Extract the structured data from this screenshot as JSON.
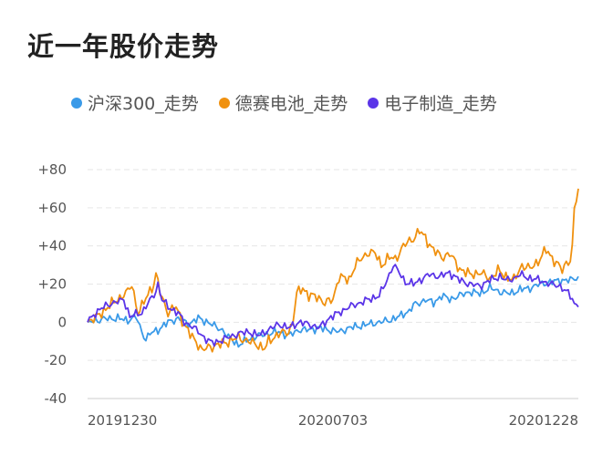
{
  "title": "近一年股价走势",
  "chart_data": {
    "type": "line",
    "ylim": [
      -40,
      80
    ],
    "yticks": [
      "+80",
      "+60",
      "+40",
      "+20",
      "0",
      "-20",
      "-40"
    ],
    "ytick_values": [
      80,
      60,
      40,
      20,
      0,
      -20,
      -40
    ],
    "xtick_labels": [
      "20191230",
      "20200703",
      "20201228"
    ],
    "grid": true,
    "legend_position": "top-left",
    "n_points": 245,
    "series": [
      {
        "name": "沪深300_走势",
        "color": "#3a9ae8",
        "anchors": [
          [
            0,
            0
          ],
          [
            5,
            1
          ],
          [
            10,
            2
          ],
          [
            15,
            2
          ],
          [
            20,
            1
          ],
          [
            24,
            3
          ],
          [
            27,
            -5
          ],
          [
            29,
            -9
          ],
          [
            31,
            -6
          ],
          [
            35,
            -4
          ],
          [
            40,
            0
          ],
          [
            45,
            2
          ],
          [
            50,
            -1
          ],
          [
            55,
            2
          ],
          [
            60,
            0
          ],
          [
            63,
            -2
          ],
          [
            67,
            -4
          ],
          [
            70,
            -8
          ],
          [
            73,
            -10
          ],
          [
            75,
            -12
          ],
          [
            80,
            -9
          ],
          [
            85,
            -7
          ],
          [
            90,
            -6
          ],
          [
            95,
            -5
          ],
          [
            100,
            -7
          ],
          [
            105,
            -4
          ],
          [
            110,
            -4
          ],
          [
            115,
            -3
          ],
          [
            120,
            -4
          ],
          [
            125,
            -5
          ],
          [
            130,
            -3
          ],
          [
            135,
            -2
          ],
          [
            140,
            -1
          ],
          [
            145,
            0
          ],
          [
            150,
            1
          ],
          [
            155,
            3
          ],
          [
            160,
            6
          ],
          [
            162,
            9
          ],
          [
            165,
            10
          ],
          [
            168,
            12
          ],
          [
            172,
            10
          ],
          [
            176,
            14
          ],
          [
            180,
            12
          ],
          [
            185,
            14
          ],
          [
            190,
            16
          ],
          [
            195,
            15
          ],
          [
            200,
            18
          ],
          [
            205,
            16
          ],
          [
            210,
            15
          ],
          [
            215,
            17
          ],
          [
            220,
            18
          ],
          [
            225,
            20
          ],
          [
            230,
            21
          ],
          [
            235,
            22
          ],
          [
            240,
            22
          ],
          [
            244,
            24
          ]
        ]
      },
      {
        "name": "德赛电池_走势",
        "color": "#f0910f",
        "anchors": [
          [
            0,
            0
          ],
          [
            5,
            3
          ],
          [
            10,
            8
          ],
          [
            15,
            12
          ],
          [
            20,
            16
          ],
          [
            22,
            20
          ],
          [
            25,
            5
          ],
          [
            27,
            8
          ],
          [
            30,
            15
          ],
          [
            33,
            20
          ],
          [
            34,
            25
          ],
          [
            36,
            16
          ],
          [
            40,
            5
          ],
          [
            44,
            8
          ],
          [
            48,
            -1
          ],
          [
            50,
            -5
          ],
          [
            54,
            -10
          ],
          [
            57,
            -15
          ],
          [
            60,
            -13
          ],
          [
            65,
            -12
          ],
          [
            70,
            -10
          ],
          [
            75,
            -8
          ],
          [
            80,
            -10
          ],
          [
            85,
            -12
          ],
          [
            88,
            -14
          ],
          [
            90,
            -10
          ],
          [
            95,
            -6
          ],
          [
            100,
            -5
          ],
          [
            102,
            0
          ],
          [
            104,
            15
          ],
          [
            107,
            18
          ],
          [
            110,
            14
          ],
          [
            115,
            13
          ],
          [
            118,
            10
          ],
          [
            122,
            12
          ],
          [
            125,
            24
          ],
          [
            130,
            22
          ],
          [
            133,
            30
          ],
          [
            136,
            33
          ],
          [
            140,
            37
          ],
          [
            143,
            36
          ],
          [
            146,
            30
          ],
          [
            150,
            34
          ],
          [
            153,
            33
          ],
          [
            157,
            40
          ],
          [
            162,
            44
          ],
          [
            165,
            48
          ],
          [
            168,
            44
          ],
          [
            172,
            38
          ],
          [
            176,
            34
          ],
          [
            180,
            36
          ],
          [
            185,
            28
          ],
          [
            190,
            25
          ],
          [
            195,
            26
          ],
          [
            200,
            23
          ],
          [
            204,
            27
          ],
          [
            208,
            24
          ],
          [
            212,
            22
          ],
          [
            216,
            30
          ],
          [
            220,
            28
          ],
          [
            224,
            32
          ],
          [
            228,
            38
          ],
          [
            230,
            35
          ],
          [
            234,
            30
          ],
          [
            236,
            27
          ],
          [
            238,
            31
          ],
          [
            240,
            33
          ],
          [
            241,
            40
          ],
          [
            242,
            58
          ],
          [
            243,
            65
          ],
          [
            244,
            70
          ]
        ]
      },
      {
        "name": "电子制造_走势",
        "color": "#5b35e8",
        "anchors": [
          [
            0,
            0
          ],
          [
            4,
            5
          ],
          [
            8,
            8
          ],
          [
            12,
            10
          ],
          [
            16,
            11
          ],
          [
            18,
            12
          ],
          [
            21,
            3
          ],
          [
            24,
            4
          ],
          [
            27,
            5
          ],
          [
            30,
            10
          ],
          [
            33,
            14
          ],
          [
            35,
            20
          ],
          [
            37,
            12
          ],
          [
            40,
            8
          ],
          [
            45,
            5
          ],
          [
            48,
            0
          ],
          [
            52,
            -2
          ],
          [
            55,
            -5
          ],
          [
            58,
            -8
          ],
          [
            62,
            -11
          ],
          [
            65,
            -10
          ],
          [
            70,
            -8
          ],
          [
            75,
            -6
          ],
          [
            80,
            -5
          ],
          [
            85,
            -7
          ],
          [
            90,
            -4
          ],
          [
            95,
            -1
          ],
          [
            100,
            -3
          ],
          [
            105,
            0
          ],
          [
            110,
            -1
          ],
          [
            115,
            -3
          ],
          [
            120,
            2
          ],
          [
            125,
            5
          ],
          [
            130,
            8
          ],
          [
            135,
            10
          ],
          [
            140,
            12
          ],
          [
            145,
            14
          ],
          [
            148,
            20
          ],
          [
            150,
            25
          ],
          [
            152,
            30
          ],
          [
            155,
            26
          ],
          [
            158,
            21
          ],
          [
            162,
            20
          ],
          [
            165,
            22
          ],
          [
            170,
            25
          ],
          [
            175,
            24
          ],
          [
            180,
            26
          ],
          [
            185,
            22
          ],
          [
            190,
            20
          ],
          [
            195,
            19
          ],
          [
            200,
            22
          ],
          [
            205,
            24
          ],
          [
            208,
            22
          ],
          [
            212,
            23
          ],
          [
            215,
            25
          ],
          [
            220,
            23
          ],
          [
            225,
            22
          ],
          [
            230,
            20
          ],
          [
            235,
            19
          ],
          [
            238,
            16
          ],
          [
            240,
            14
          ],
          [
            242,
            10
          ],
          [
            244,
            8
          ]
        ]
      }
    ]
  }
}
